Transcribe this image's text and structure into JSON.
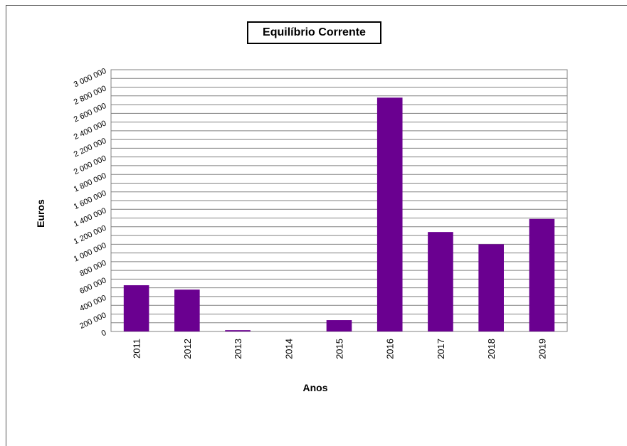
{
  "chart_data": {
    "type": "bar",
    "title": "Equilíbrio Corrente",
    "xlabel": "Anos",
    "ylabel": "Euros",
    "categories": [
      "2011",
      "2012",
      "2013",
      "2014",
      "2015",
      "2016",
      "2017",
      "2018",
      "2019"
    ],
    "values": [
      530000,
      480000,
      15000,
      0,
      130000,
      2680000,
      1140000,
      1000000,
      1290000
    ],
    "ylim": [
      0,
      3000000
    ],
    "yticks": [
      0,
      200000,
      400000,
      600000,
      800000,
      1000000,
      1200000,
      1400000,
      1600000,
      1800000,
      2000000,
      2200000,
      2400000,
      2600000,
      2800000,
      3000000
    ],
    "ytick_labels": [
      "0",
      "200 000",
      "400 000",
      "600 000",
      "800 000",
      "1 000 000",
      "1 200 000",
      "1 400 000",
      "1 600 000",
      "1 800 000",
      "2 000 000",
      "2 200 000",
      "2 400 000",
      "2 600 000",
      "2 800 000",
      "3 000 000"
    ],
    "grid": true,
    "legend": "none",
    "bar_color": "#6a0090"
  }
}
